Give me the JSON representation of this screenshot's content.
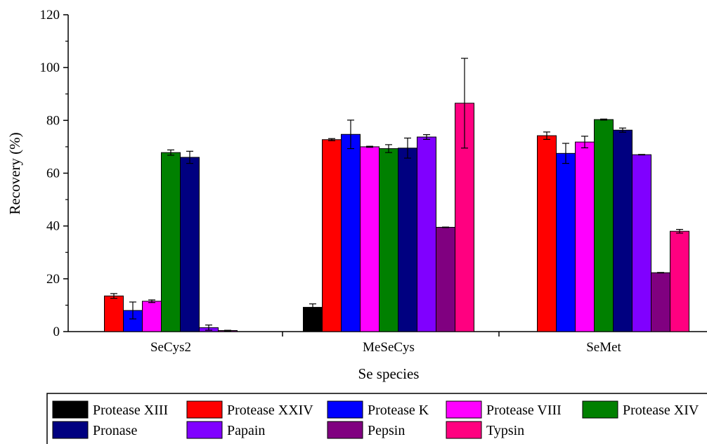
{
  "chart_data": {
    "type": "bar",
    "xlabel": "Se species",
    "ylabel": "Recovery (%)",
    "ylim": [
      0,
      120
    ],
    "yticks": [
      0,
      20,
      40,
      60,
      80,
      100,
      120
    ],
    "categories": [
      "SeCys2",
      "MeSeCys",
      "SeMet"
    ],
    "legend_position": "bottom",
    "error_bars": true,
    "series": [
      {
        "name": "Protease XIII",
        "color": "#000000",
        "values": [
          null,
          9.2,
          null
        ],
        "errors": [
          null,
          1.3,
          null
        ]
      },
      {
        "name": "Protease XXIV",
        "color": "#ff0000",
        "values": [
          13.5,
          72.7,
          74.2
        ],
        "errors": [
          0.9,
          0.4,
          1.4
        ]
      },
      {
        "name": "Protease K",
        "color": "#0000ff",
        "values": [
          8.0,
          74.7,
          67.5
        ],
        "errors": [
          3.2,
          5.4,
          3.8
        ]
      },
      {
        "name": "Protease VIII",
        "color": "#ff00ff",
        "values": [
          11.5,
          70.0,
          71.8
        ],
        "errors": [
          0.5,
          0.2,
          2.2
        ]
      },
      {
        "name": "Protease XIV",
        "color": "#008000",
        "values": [
          67.8,
          69.3,
          80.3
        ],
        "errors": [
          1.0,
          1.5,
          0.2
        ]
      },
      {
        "name": "Pronase",
        "color": "#000080",
        "values": [
          66.0,
          69.5,
          76.3
        ],
        "errors": [
          2.3,
          3.8,
          0.8
        ]
      },
      {
        "name": "Papain",
        "color": "#8000ff",
        "values": [
          1.5,
          73.7,
          67.0
        ],
        "errors": [
          1.0,
          0.9,
          0.1
        ]
      },
      {
        "name": "Pepsin",
        "color": "#800080",
        "values": [
          0.4,
          39.5,
          22.3
        ],
        "errors": [
          0.1,
          0.1,
          0.1
        ]
      },
      {
        "name": "Typsin",
        "color": "#ff0080",
        "values": [
          null,
          86.5,
          38.0
        ],
        "errors": [
          null,
          17.0,
          0.7
        ]
      }
    ]
  }
}
